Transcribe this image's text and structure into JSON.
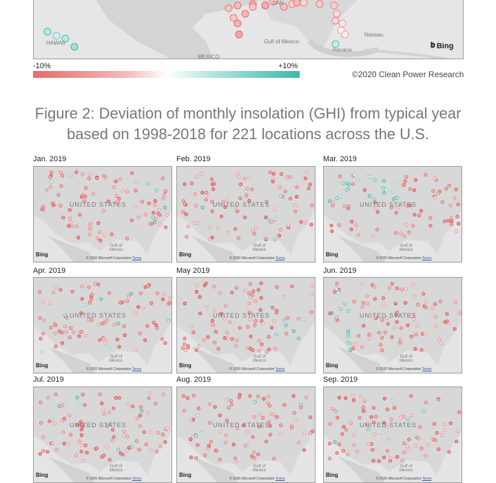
{
  "top_map": {
    "labels": {
      "hawaii": "HAWAII",
      "gulf": "Gulf of Mexico",
      "mexico": "MEXICO",
      "nassau": "Nassau",
      "havana": "Havana",
      "san": "SAN"
    },
    "bing": "Bing"
  },
  "legend": {
    "min": "-10%",
    "max": "+10%",
    "colors": {
      "low": "#e86a6a",
      "mid": "#ffffff",
      "high": "#3fb8ac"
    }
  },
  "copyright": "©2020 Clean Power Research",
  "figure_title": "Figure 2: Deviation of monthly insolation (GHI) from typical year based on 1998-2018 for 221 locations across the U.S.",
  "panel_common": {
    "country": "UNITED STATES",
    "gulf_line1": "Gulf of",
    "gulf_line2": "Mexico",
    "bing": "Bing",
    "map_copyright": "© 2020 Microsoft Corporation",
    "terms": "Terms"
  },
  "panels": [
    {
      "label": "Jan. 2019"
    },
    {
      "label": "Feb. 2019"
    },
    {
      "label": "Mar. 2019"
    },
    {
      "label": "Apr. 2019"
    },
    {
      "label": "May 2019"
    },
    {
      "label": "Jun. 2019"
    },
    {
      "label": "Jul. 2019"
    },
    {
      "label": "Aug. 2019"
    },
    {
      "label": "Sep. 2019"
    }
  ]
}
